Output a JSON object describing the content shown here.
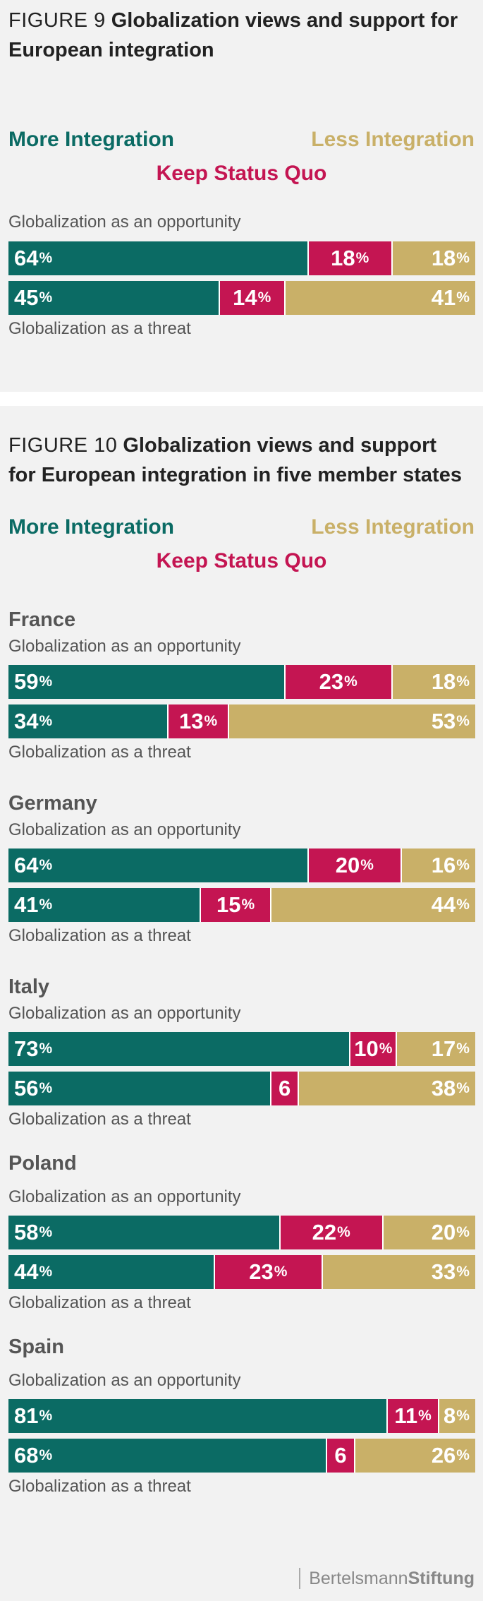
{
  "figure9": {
    "number": "FIGURE 9",
    "title_line1": "Globalization views and support for",
    "title_line2": "European integration",
    "legend": {
      "more": "More Integration",
      "less": "Less Integration",
      "keep": "Keep Status Quo"
    },
    "label_opportunity": "Globalization as an opportunity",
    "label_threat": "Globalization as a threat"
  },
  "figure10": {
    "number": "FIGURE 10",
    "title_line1": "Globalization views and support",
    "title_line2": "for European integration in five member states",
    "legend": {
      "more": "More Integration",
      "less": "Less Integration",
      "keep": "Keep Status Quo"
    },
    "label_opportunity": "Globalization as an opportunity",
    "label_threat": "Globalization as a threat"
  },
  "logo": {
    "part1": "Bertelsmann",
    "part2": "Stiftung"
  },
  "colors": {
    "more": "#0b6b64",
    "keep": "#c41552",
    "less": "#c9b068"
  },
  "chart_data": [
    {
      "type": "bar",
      "title": "Globalization views and support for European integration",
      "stacked": true,
      "orientation": "horizontal",
      "categories": [
        "Globalization as an opportunity",
        "Globalization as a threat"
      ],
      "series": [
        {
          "name": "More Integration",
          "values": [
            64,
            45
          ],
          "labels": [
            "64",
            "45"
          ]
        },
        {
          "name": "Keep Status Quo",
          "values": [
            18,
            14
          ],
          "labels": [
            "18",
            "14"
          ]
        },
        {
          "name": "Less Integration",
          "values": [
            18,
            41
          ],
          "labels": [
            "18",
            "41"
          ]
        }
      ]
    },
    {
      "type": "bar",
      "title": "Globalization views and support for European integration in five member states",
      "stacked": true,
      "orientation": "horizontal",
      "groups": [
        {
          "country": "France",
          "categories": [
            "Globalization as an opportunity",
            "Globalization as a threat"
          ],
          "series": [
            {
              "name": "More Integration",
              "values": [
                59,
                34
              ],
              "labels": [
                "59",
                "34"
              ]
            },
            {
              "name": "Keep Status Quo",
              "values": [
                23,
                13
              ],
              "labels": [
                "23",
                "13"
              ]
            },
            {
              "name": "Less Integration",
              "values": [
                18,
                53
              ],
              "labels": [
                "18",
                "53"
              ]
            }
          ]
        },
        {
          "country": "Germany",
          "categories": [
            "Globalization as an opportunity",
            "Globalization as a threat"
          ],
          "series": [
            {
              "name": "More Integration",
              "values": [
                64,
                41
              ],
              "labels": [
                "64",
                "41"
              ]
            },
            {
              "name": "Keep Status Quo",
              "values": [
                20,
                15
              ],
              "labels": [
                "20",
                "15"
              ]
            },
            {
              "name": "Less Integration",
              "values": [
                16,
                44
              ],
              "labels": [
                "16",
                "44"
              ]
            }
          ]
        },
        {
          "country": "Italy",
          "categories": [
            "Globalization as an opportunity",
            "Globalization as a threat"
          ],
          "series": [
            {
              "name": "More Integration",
              "values": [
                73,
                56
              ],
              "labels": [
                "73",
                "56"
              ]
            },
            {
              "name": "Keep Status Quo",
              "values": [
                10,
                6
              ],
              "labels": [
                "10",
                "6"
              ]
            },
            {
              "name": "Less Integration",
              "values": [
                17,
                38
              ],
              "labels": [
                "17",
                "38"
              ]
            }
          ]
        },
        {
          "country": "Poland",
          "categories": [
            "Globalization as an opportunity",
            "Globalization as a threat"
          ],
          "series": [
            {
              "name": "More Integration",
              "values": [
                58,
                44
              ],
              "labels": [
                "58",
                "44"
              ]
            },
            {
              "name": "Keep Status Quo",
              "values": [
                22,
                23
              ],
              "labels": [
                "22",
                "23"
              ]
            },
            {
              "name": "Less Integration",
              "values": [
                20,
                33
              ],
              "labels": [
                "20",
                "33"
              ]
            }
          ]
        },
        {
          "country": "Spain",
          "categories": [
            "Globalization as an opportunity",
            "Globalization as a threat"
          ],
          "series": [
            {
              "name": "More Integration",
              "values": [
                81,
                68
              ],
              "labels": [
                "81",
                "68"
              ]
            },
            {
              "name": "Keep Status Quo",
              "values": [
                11,
                6
              ],
              "labels": [
                "11",
                "6"
              ]
            },
            {
              "name": "Less Integration",
              "values": [
                8,
                26
              ],
              "labels": [
                "8",
                "26"
              ]
            }
          ]
        }
      ]
    }
  ]
}
